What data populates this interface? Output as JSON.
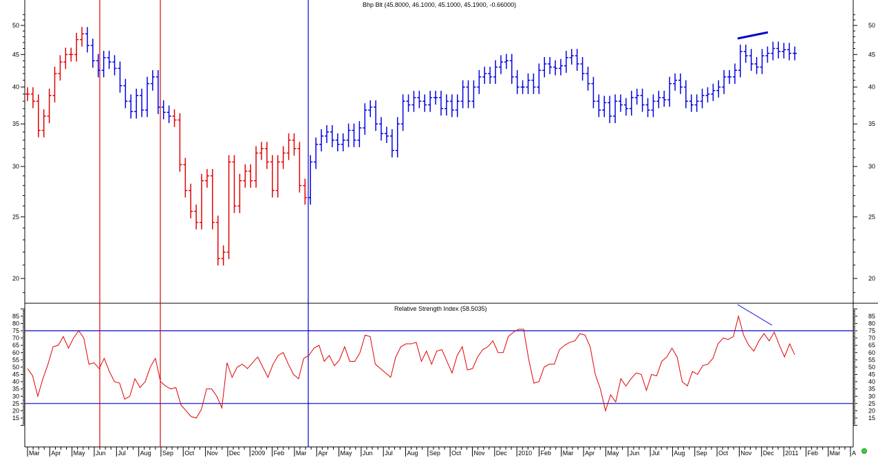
{
  "price_panel": {
    "title": "Bhp Blt (45.8000, 46.1000, 45.1000, 45.1900, -0.66000)",
    "y_ticks": [
      20,
      25,
      30,
      35,
      40,
      45,
      50
    ]
  },
  "rsi_panel": {
    "title": "Relative Strength Index (58.5035)",
    "y_ticks": [
      15,
      20,
      25,
      30,
      35,
      40,
      45,
      50,
      55,
      60,
      65,
      70,
      75,
      80,
      85
    ],
    "overbought": 75,
    "oversold": 25
  },
  "x_axis": {
    "labels": [
      "Mar",
      "Apr",
      "May",
      "Jun",
      "Jul",
      "Aug",
      "Sep",
      "Oct",
      "Nov",
      "Dec",
      "2009",
      "Feb",
      "Mar",
      "Apr",
      "May",
      "Jun",
      "Jul",
      "Aug",
      "Sep",
      "Oct",
      "Nov",
      "Dec",
      "2010",
      "Feb",
      "Mar",
      "Apr",
      "May",
      "Jun",
      "Jul",
      "Aug",
      "Sep",
      "Oct",
      "Nov",
      "Dec",
      "2011",
      "Feb",
      "Mar",
      "A"
    ]
  },
  "colors": {
    "down_bars": "#e00000",
    "up_bars": "#0000e0",
    "rsi_line": "#e00000",
    "guide_lines": "#0000cc",
    "red_markers": "#e00000",
    "blue_marker": "#0000cc"
  },
  "chart_data": [
    {
      "type": "ohlc-bar",
      "title": "Bhp Blt (45.8000, 46.1000, 45.1000, 45.1900, -0.66000)",
      "xlabel": "",
      "ylabel": "",
      "y_scale": "log",
      "ylim": [
        18.5,
        52
      ],
      "period": "weekly, Mar 2008 – Jan 2011",
      "last_bar": {
        "open": 45.8,
        "high": 46.1,
        "low": 45.1,
        "close": 45.19,
        "change": -0.66
      },
      "approx_closes": [
        39.0,
        38.0,
        34.2,
        36.0,
        38.8,
        42.0,
        43.8,
        45.0,
        45.0,
        47.5,
        48.5,
        46.5,
        44.0,
        42.5,
        44.5,
        43.8,
        42.8,
        40.2,
        38.0,
        36.6,
        38.8,
        36.8,
        40.5,
        41.5,
        37.2,
        36.5,
        36.0,
        35.5,
        30.2,
        27.5,
        25.5,
        24.5,
        28.5,
        29.0,
        24.5,
        21.5,
        22.0,
        30.5,
        26.0,
        28.5,
        29.5,
        28.5,
        31.5,
        32.0,
        30.5,
        27.5,
        30.5,
        31.5,
        33.0,
        32.0,
        28.0,
        26.8,
        30.5,
        32.5,
        33.5,
        34.0,
        33.0,
        32.5,
        33.0,
        34.2,
        33.0,
        34.5,
        36.8,
        37.2,
        35.0,
        33.8,
        33.5,
        31.8,
        35.0,
        38.0,
        37.5,
        38.5,
        38.0,
        37.5,
        38.5,
        38.5,
        37.0,
        38.0,
        36.8,
        38.0,
        40.0,
        38.0,
        40.0,
        41.5,
        42.0,
        41.5,
        43.0,
        43.8,
        44.0,
        41.5,
        40.0,
        40.0,
        41.0,
        40.0,
        42.5,
        43.5,
        43.0,
        42.8,
        43.2,
        44.5,
        44.8,
        43.5,
        42.0,
        40.5,
        38.0,
        36.8,
        37.8,
        36.0,
        38.0,
        37.5,
        37.0,
        38.5,
        38.8,
        37.5,
        36.8,
        38.0,
        38.5,
        38.2,
        40.5,
        41.0,
        40.0,
        38.0,
        37.5,
        38.0,
        38.8,
        39.0,
        39.5,
        40.0,
        41.5,
        41.5,
        42.5,
        45.5,
        44.8,
        43.5,
        43.0,
        44.8,
        45.2,
        46.0,
        45.5,
        45.8,
        45.2,
        45.19
      ],
      "annotations": [
        {
          "type": "vertical-line",
          "color": "red",
          "date": "Jun 2008"
        },
        {
          "type": "vertical-line",
          "color": "red",
          "date": "Sep 2008"
        },
        {
          "type": "vertical-line",
          "color": "blue",
          "date": "Mar 2009"
        },
        {
          "type": "trendline",
          "color": "blue",
          "from": {
            "date": "Nov 2010",
            "value": 47.5
          },
          "to": {
            "date": "Dec 2010",
            "value": 48.8
          },
          "note": "rising price highs (divergence)"
        }
      ],
      "y_ticks": [
        20,
        25,
        30,
        35,
        40,
        45,
        50
      ],
      "grid": false
    },
    {
      "type": "line",
      "title": "Relative Strength Index (58.5035)",
      "xlabel": "",
      "ylabel": "",
      "ylim": [
        10,
        90
      ],
      "series": [
        {
          "name": "RSI",
          "last_value": 58.5035,
          "values": [
            49,
            44,
            30,
            42,
            52,
            64,
            65,
            71,
            63,
            70,
            75,
            70,
            52,
            53,
            49,
            56,
            47,
            40,
            39,
            28,
            30,
            42,
            36,
            40,
            50,
            56,
            40,
            37,
            35,
            36,
            24,
            20,
            16,
            15,
            21,
            35,
            35,
            30,
            22,
            53,
            43,
            50,
            52,
            49,
            53,
            57,
            50,
            43,
            52,
            58,
            60,
            52,
            45,
            42,
            56,
            58,
            63,
            65,
            54,
            58,
            51,
            55,
            64,
            54,
            54,
            60,
            72,
            71,
            52,
            49,
            46,
            43,
            57,
            64,
            66,
            66,
            67,
            54,
            61,
            52,
            61,
            62,
            54,
            46,
            58,
            64,
            48,
            49,
            57,
            62,
            64,
            68,
            60,
            60,
            71,
            74,
            76,
            76,
            55,
            39,
            40,
            50,
            52,
            52,
            62,
            65,
            67,
            68,
            73,
            72,
            64,
            45,
            35,
            20,
            31,
            26,
            42,
            37,
            42,
            46,
            45,
            34,
            45,
            44,
            54,
            57,
            63,
            57,
            40,
            37,
            47,
            45,
            51,
            52,
            56,
            66,
            70,
            69,
            71,
            85,
            72,
            65,
            61,
            68,
            73,
            68,
            74,
            65,
            57,
            66,
            58.5
          ]
        }
      ],
      "reference_lines": [
        75,
        25
      ],
      "annotations": [
        {
          "type": "trendline",
          "color": "blue",
          "from": {
            "date": "Nov 2010",
            "value": 88
          },
          "to": {
            "date": "Dec 2010",
            "value": 79
          },
          "note": "falling RSI highs (bearish divergence)"
        }
      ],
      "y_ticks": [
        15,
        20,
        25,
        30,
        35,
        40,
        45,
        50,
        55,
        60,
        65,
        70,
        75,
        80,
        85
      ],
      "grid": false
    }
  ]
}
